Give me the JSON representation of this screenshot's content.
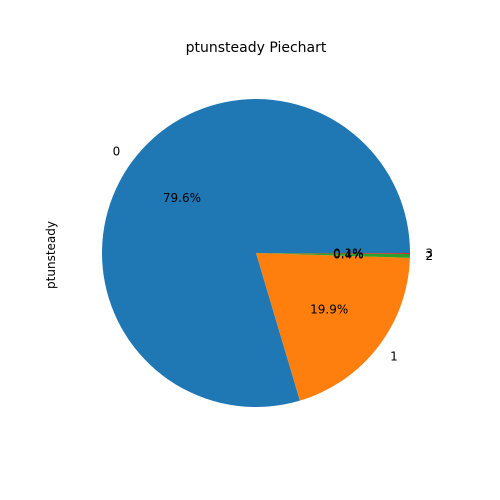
{
  "chart_data": {
    "type": "pie",
    "title": "ptunsteady Piechart",
    "ylabel": "ptunsteady",
    "categories": [
      "0",
      "1",
      "2",
      "3"
    ],
    "values": [
      79.6,
      19.9,
      0.4,
      0.1
    ],
    "labels": [
      "79.6%",
      "19.9%",
      "0.4%",
      "0.1%"
    ],
    "colors": [
      "#1f77b4",
      "#ff7f0e",
      "#2ca02c",
      "#d62728"
    ],
    "start_angle_deg": 0,
    "direction": "counterclockwise"
  }
}
